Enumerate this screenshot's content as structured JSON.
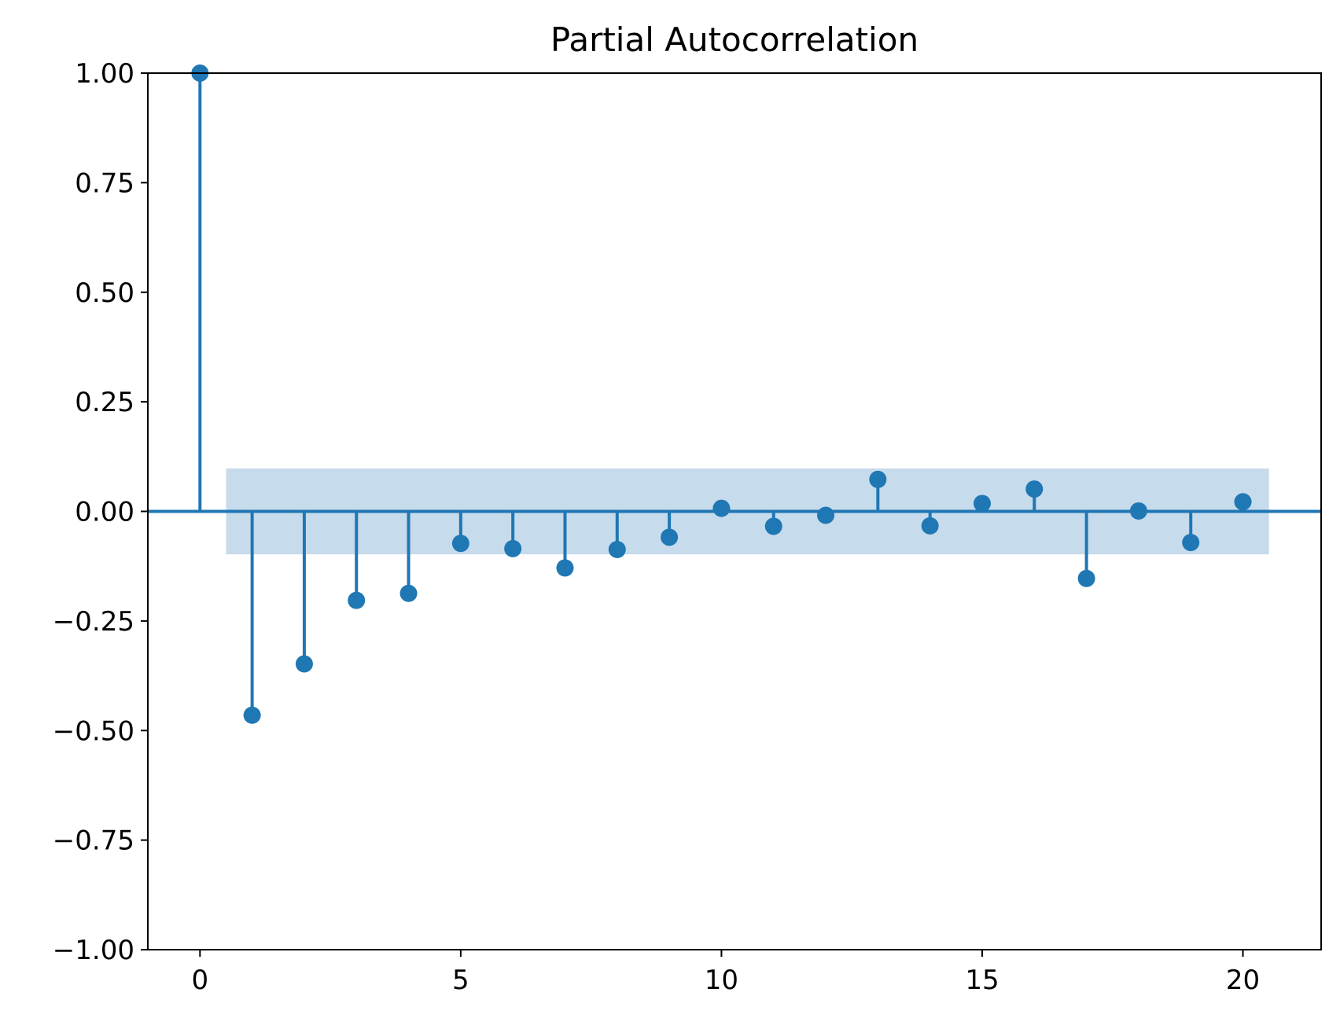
{
  "chart_data": {
    "type": "stem",
    "title": "Partial Autocorrelation",
    "xlabel": "",
    "ylabel": "",
    "x": [
      0,
      1,
      2,
      3,
      4,
      5,
      6,
      7,
      8,
      9,
      10,
      11,
      12,
      13,
      14,
      15,
      16,
      17,
      18,
      19,
      20
    ],
    "values": [
      1.0,
      -0.465,
      -0.348,
      -0.203,
      -0.187,
      -0.073,
      -0.085,
      -0.129,
      -0.087,
      -0.059,
      0.007,
      -0.034,
      -0.009,
      0.073,
      -0.033,
      0.018,
      0.051,
      -0.153,
      0.001,
      -0.071,
      0.022
    ],
    "confidence_band": {
      "x_range": [
        0.5,
        20.5
      ],
      "lower": -0.098,
      "upper": 0.098
    },
    "xlim": [
      -1.0,
      21.5
    ],
    "ylim": [
      -1.0,
      1.0
    ],
    "xticks": [
      0,
      5,
      10,
      15,
      20
    ],
    "xtick_labels": [
      "0",
      "5",
      "10",
      "15",
      "20"
    ],
    "yticks": [
      -1.0,
      -0.75,
      -0.5,
      -0.25,
      0.0,
      0.25,
      0.5,
      0.75,
      1.0
    ],
    "ytick_labels": [
      "−1.00",
      "−0.75",
      "−0.50",
      "−0.25",
      "0.00",
      "0.25",
      "0.50",
      "0.75",
      "1.00"
    ],
    "grid": false,
    "colors": {
      "series": "#1f77b4",
      "band": "#c6dbec",
      "axes": "#000000"
    }
  }
}
